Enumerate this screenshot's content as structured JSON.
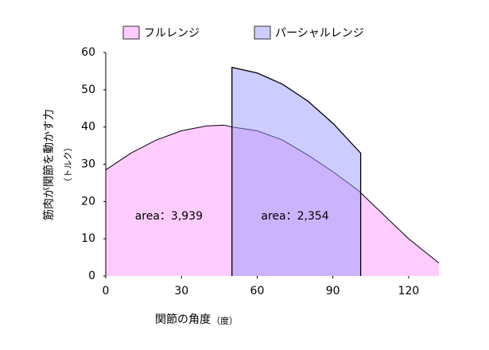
{
  "chart_data": {
    "type": "area",
    "x_label": "関節の角度",
    "x_label_unit": "（度）",
    "y_label": "筋肉が関節を動かす力",
    "y_label_unit": "（トルク）",
    "xlim": [
      0,
      132
    ],
    "xticks": [
      0,
      30,
      60,
      90,
      120
    ],
    "ylim": [
      0,
      60
    ],
    "yticks": [
      0,
      10,
      20,
      30,
      40,
      50,
      60
    ],
    "series": [
      {
        "name": "フルレンジ",
        "color": "#ffccff",
        "x": [
          0,
          10,
          20,
          30,
          40,
          47,
          50,
          60,
          70,
          80,
          90,
          100,
          110,
          120,
          132
        ],
        "values": [
          28.5,
          33,
          36.5,
          39,
          40.3,
          40.5,
          40,
          39,
          36.5,
          32.5,
          28,
          23,
          16.5,
          10,
          3.5
        ]
      },
      {
        "name": "パーシャルレンジ",
        "color": "#9999ff",
        "x": [
          50,
          60,
          70,
          80,
          90,
          101
        ],
        "values": [
          56,
          54.5,
          51.5,
          47,
          41,
          33
        ]
      }
    ],
    "annotations": [
      {
        "text": "area：3,939",
        "x": 25,
        "y": 16
      },
      {
        "text": "area：2,354",
        "x": 75,
        "y": 16
      }
    ]
  }
}
